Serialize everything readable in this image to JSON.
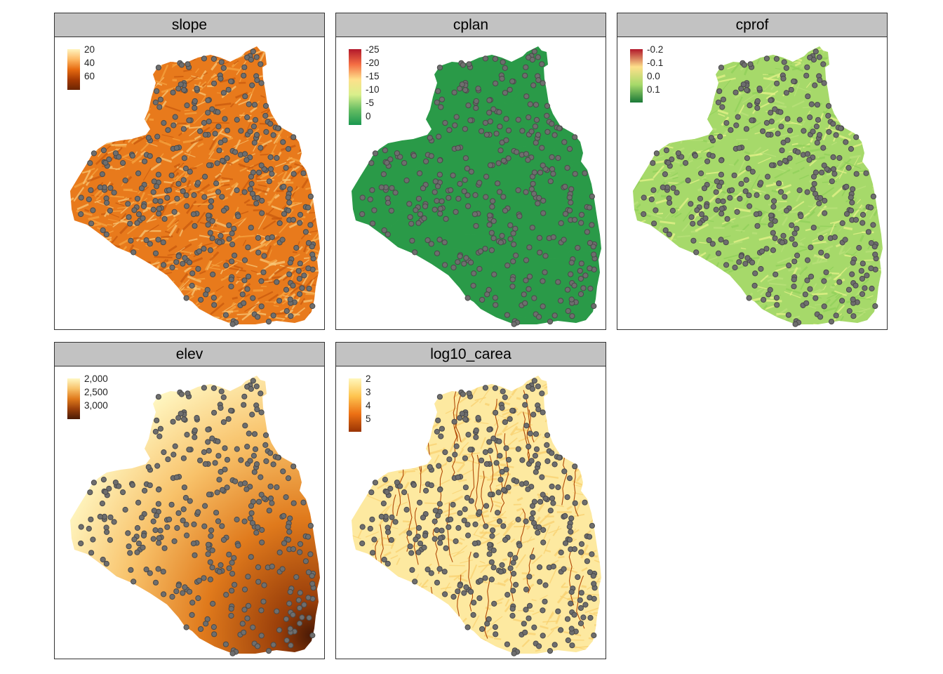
{
  "panels": [
    {
      "id": "slope",
      "title": "slope",
      "legend": [
        "20",
        "40",
        "60"
      ],
      "ramp": [
        "#fff4bf",
        "#fdb863",
        "#e66a10",
        "#a63a03",
        "#6b2503"
      ],
      "fill": [
        "#e87a1c",
        "#f5a440",
        "#c85a0e",
        "#f8c878"
      ],
      "points": 380
    },
    {
      "id": "cplan",
      "title": "cplan",
      "legend": [
        "-25",
        "-20",
        "-15",
        "-10",
        "-5",
        "0"
      ],
      "ramp": [
        "#b2182b",
        "#f46d43",
        "#fee08b",
        "#d9ef8b",
        "#66bd63",
        "#1a9850"
      ],
      "fill": [
        "#2a9a48",
        "#2f9c4b"
      ],
      "points": 330
    },
    {
      "id": "cprof",
      "title": "cprof",
      "legend": [
        "-0.2",
        "-0.1",
        "0.0",
        "0.1"
      ],
      "ramp": [
        "#b2182b",
        "#fee08b",
        "#a6d96a",
        "#1a7837"
      ],
      "fill": [
        "#a6d96a",
        "#b8e07a",
        "#8fcf5a",
        "#e6f28a"
      ],
      "points": 350
    },
    {
      "id": "elev",
      "title": "elev",
      "legend": [
        "2,000",
        "2,500",
        "3,000"
      ],
      "ramp": [
        "#fff8c4",
        "#f8c26a",
        "#e07a1c",
        "#9a3f0a",
        "#4a1a05"
      ],
      "fill": [
        "#fde9a8",
        "#f4b55a"
      ],
      "points": 380
    },
    {
      "id": "log10_carea",
      "title": "log10_carea",
      "legend": [
        "2",
        "3",
        "4",
        "5"
      ],
      "ramp": [
        "#fff7bc",
        "#fec44f",
        "#ec7014",
        "#993404"
      ],
      "fill": [
        "#fde9a0",
        "#f8d070"
      ],
      "points": 360
    }
  ],
  "point_style": {
    "fill": "#6e6e6e",
    "stroke": "#4a4a4a"
  }
}
